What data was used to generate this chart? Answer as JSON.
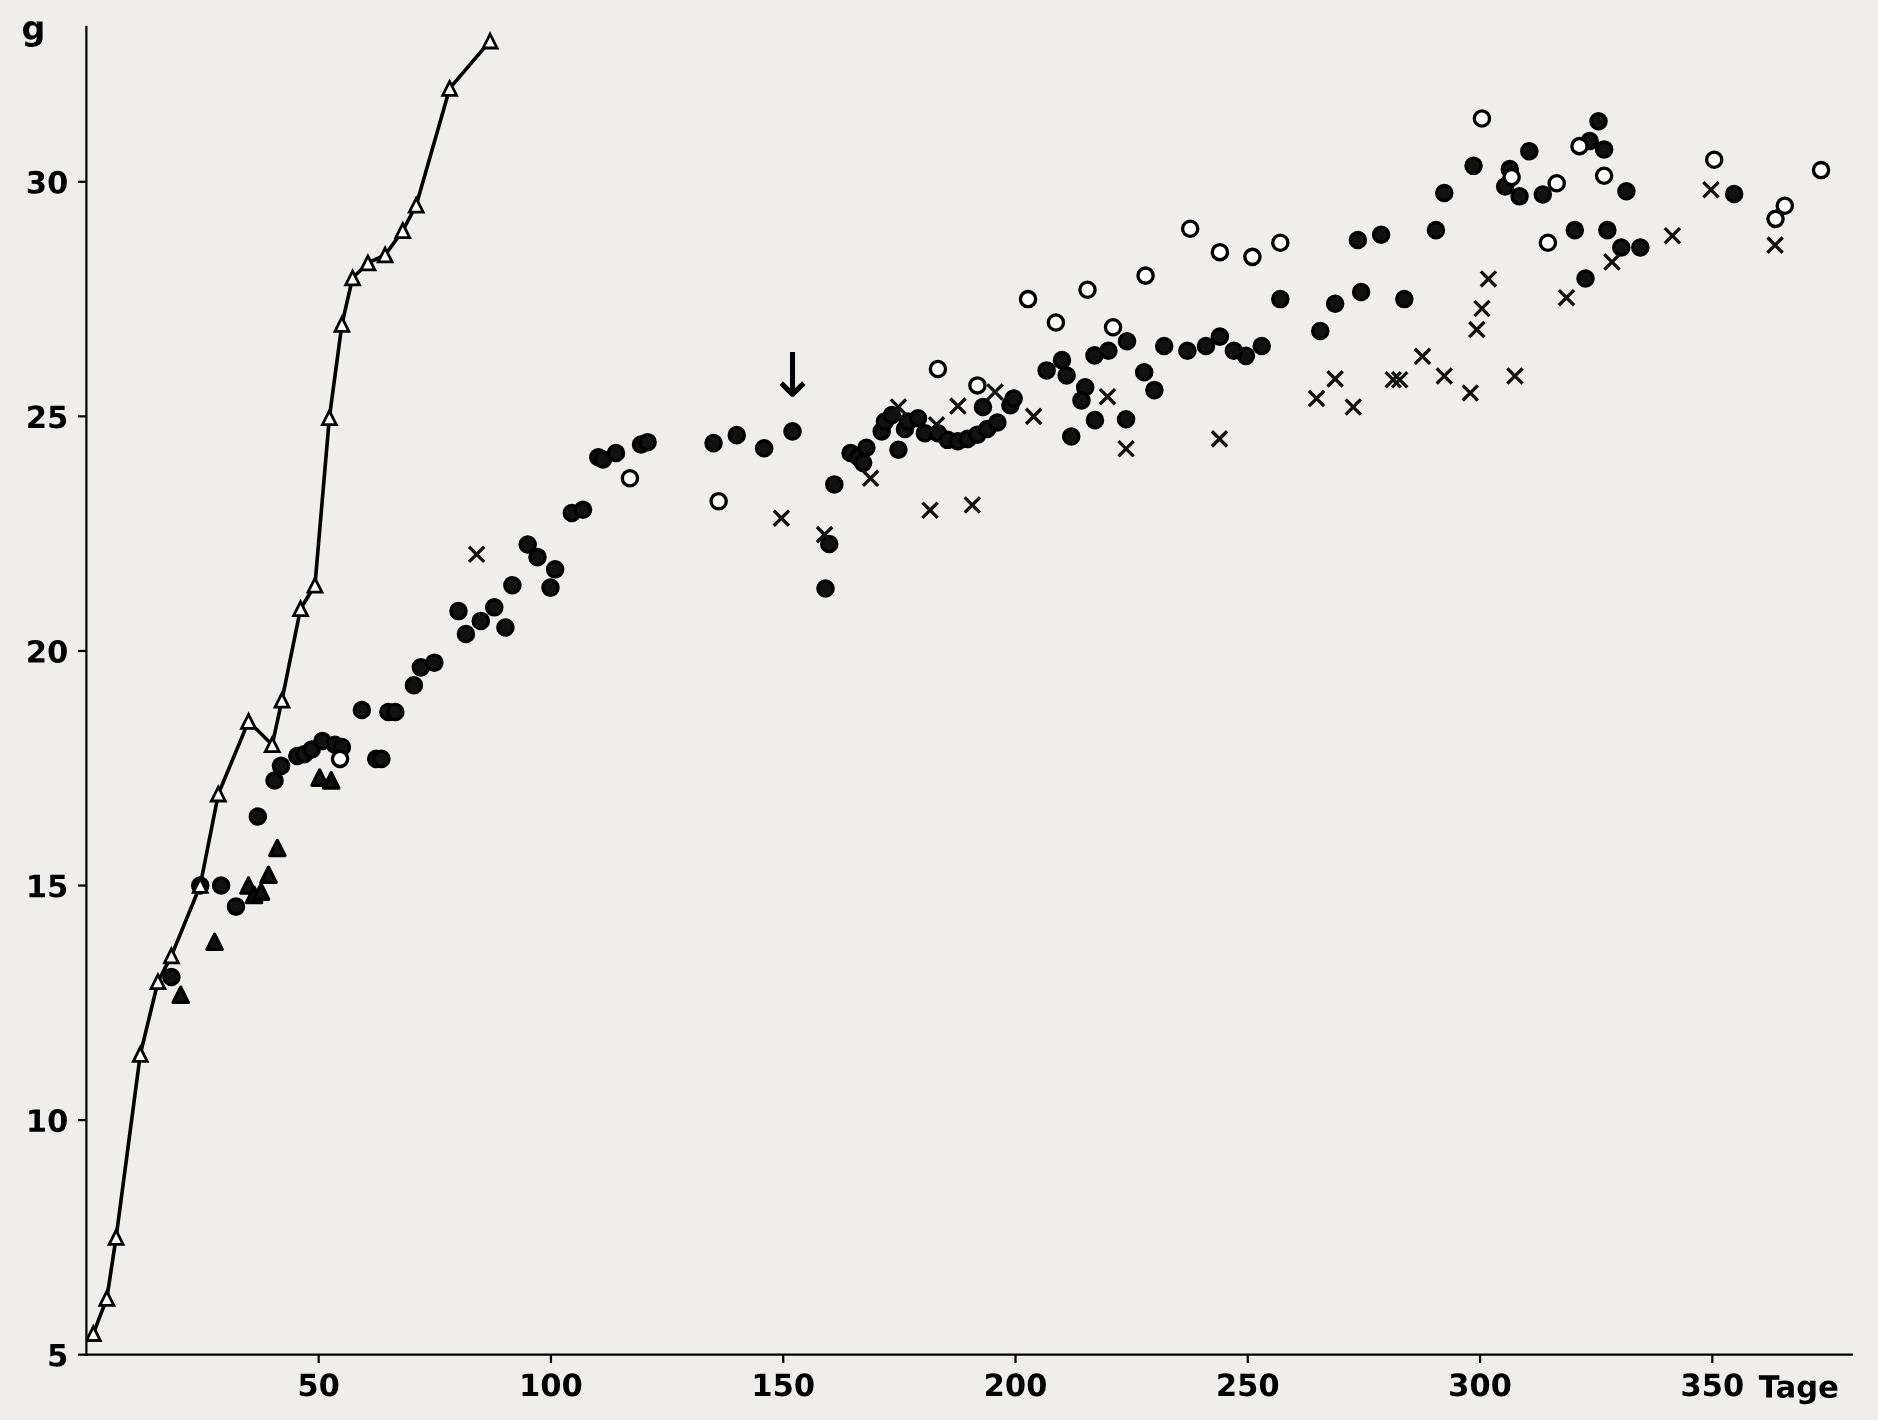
{
  "chart_data": {
    "type": "scatter",
    "xlabel": "Tage",
    "ylabel": "g",
    "xlim": [
      0,
      380
    ],
    "ylim": [
      5,
      33.3
    ],
    "xticks": [
      50,
      100,
      150,
      200,
      250,
      300,
      350
    ],
    "yticks": [
      5,
      10,
      15,
      20,
      25,
      30
    ],
    "grid": false,
    "legend": false,
    "annotations": [
      {
        "text": "↓",
        "x": 152,
        "y": 24.68
      }
    ],
    "series": [
      {
        "type": "line",
        "marker": "triangle",
        "color": "#ffffff",
        "x": [
          1.5,
          4.4,
          6.4,
          11.6,
          15.4,
          18.3,
          24.5,
          28.4,
          34.9,
          40.0,
          42.1,
          46.1,
          49.2,
          52.3,
          55.0,
          57.3,
          60.6,
          64.3,
          68.1,
          71.0,
          78.2,
          86.9
        ],
        "values": [
          5.45,
          6.2,
          7.5,
          11.4,
          12.95,
          13.5,
          15.0,
          16.95,
          18.5,
          18.0,
          18.95,
          20.9,
          21.4,
          24.97,
          26.96,
          27.95,
          28.27,
          28.44,
          28.96,
          29.5,
          31.99,
          33.0
        ]
      },
      {
        "marker": "circle",
        "color": "#111111",
        "x": [
          18.3,
          24.5,
          29.0,
          32.2,
          36.9,
          40.5,
          41.9,
          45.4,
          46.9,
          48.5,
          50.8,
          53.5,
          55.0,
          59.3,
          62.4,
          63.5,
          65.0,
          66.5,
          70.5,
          72.0,
          74.9,
          80.1,
          81.7,
          84.9,
          87.8,
          90.2,
          91.7,
          95.0,
          97.1,
          100.9,
          99.9,
          104.5,
          106.9,
          110.2,
          111.2,
          114.0,
          119.4,
          120.8,
          135.0,
          140.0,
          145.9,
          152.0,
          159.9,
          159.1,
          161.0,
          164.5,
          166.2,
          167.2,
          167.9,
          171.2,
          171.9,
          173.4,
          176.2,
          176.9,
          179.0,
          180.5,
          174.8,
          183.3,
          185.4,
          187.6,
          189.7,
          191.8,
          193.9,
          196.1,
          193.0,
          198.9,
          199.6,
          206.7,
          211.0,
          215.0,
          214.2,
          217.1,
          212.0,
          223.8,
          227.7,
          229.9,
          249.6,
          210.0,
          217.0,
          220.0,
          224.0,
          232.0,
          237.0,
          241.0,
          244.0,
          247.0,
          253.0,
          257.0,
          265.6,
          268.8,
          274.4,
          283.7,
          273.7,
          278.7,
          290.5,
          292.3,
          298.6,
          305.4,
          306.4,
          308.5,
          310.6,
          313.5,
          320.4,
          327.4,
          323.6,
          325.5,
          326.7,
          331.5,
          330.4,
          334.5,
          322.7,
          354.7
        ],
        "values": [
          13.05,
          15.0,
          15.0,
          14.55,
          16.47,
          17.24,
          17.55,
          17.76,
          17.8,
          17.9,
          18.08,
          18.0,
          17.95,
          18.74,
          17.7,
          17.7,
          18.7,
          18.7,
          19.27,
          19.65,
          19.75,
          20.85,
          20.36,
          20.64,
          20.93,
          20.5,
          21.4,
          22.27,
          22.0,
          21.74,
          21.35,
          22.94,
          23.01,
          24.13,
          24.08,
          24.22,
          24.4,
          24.45,
          24.43,
          24.6,
          24.32,
          24.68,
          22.28,
          21.33,
          23.55,
          24.22,
          24.13,
          24.01,
          24.33,
          24.68,
          24.89,
          25.03,
          24.73,
          24.89,
          24.96,
          24.64,
          24.29,
          24.64,
          24.5,
          24.47,
          24.52,
          24.61,
          24.73,
          24.87,
          25.2,
          25.24,
          25.38,
          25.98,
          25.87,
          25.62,
          25.34,
          24.92,
          24.57,
          24.94,
          25.94,
          25.56,
          26.29,
          26.2,
          26.3,
          26.4,
          26.6,
          26.5,
          26.4,
          26.5,
          26.7,
          26.4,
          26.5,
          27.5,
          26.82,
          27.4,
          27.65,
          27.5,
          28.76,
          28.87,
          28.97,
          29.76,
          30.34,
          29.9,
          30.27,
          29.69,
          30.65,
          29.73,
          28.97,
          28.97,
          30.87,
          31.29,
          30.69,
          29.8,
          28.6,
          28.6,
          27.94,
          29.74
        ]
      },
      {
        "marker": "circle",
        "color": "#ffffff",
        "x": [
          54.6,
          117.0,
          136.1,
          183.3,
          191.8,
          202.7,
          208.7,
          215.5,
          221.0,
          228.0,
          237.6,
          244.0,
          251.0,
          257.0,
          300.4,
          306.8,
          316.5,
          314.6,
          321.4,
          326.7,
          350.4,
          363.6,
          365.6,
          373.4
        ],
        "values": [
          17.7,
          23.68,
          23.19,
          26.01,
          25.66,
          27.5,
          27.0,
          27.7,
          26.9,
          28.0,
          29.0,
          28.5,
          28.4,
          28.7,
          31.35,
          30.1,
          29.97,
          28.7,
          30.76,
          30.13,
          30.47,
          29.21,
          29.49,
          30.25
        ]
      },
      {
        "marker": "cross",
        "color": "#111111",
        "x": [
          84.0,
          149.6,
          158.9,
          168.8,
          174.8,
          181.6,
          183.0,
          187.6,
          195.6,
          203.9,
          190.7,
          219.8,
          223.8,
          243.9,
          264.8,
          268.8,
          272.7,
          281.3,
          282.7,
          287.6,
          292.3,
          297.9,
          299.3,
          300.4,
          301.8,
          307.5,
          318.6,
          328.4,
          341.4,
          349.7,
          363.5
        ],
        "values": [
          22.06,
          22.83,
          22.48,
          23.68,
          25.2,
          23.0,
          24.82,
          25.22,
          25.52,
          25.0,
          23.11,
          25.42,
          24.31,
          24.52,
          25.38,
          25.8,
          25.2,
          25.78,
          25.78,
          26.28,
          25.86,
          25.5,
          26.85,
          27.3,
          27.93,
          25.86,
          27.53,
          28.29,
          28.85,
          29.83,
          28.65
        ]
      },
      {
        "marker": "triangle",
        "color": "#111111",
        "x": [
          20.3,
          27.6,
          34.9,
          36.1,
          37.6,
          39.2,
          41.1,
          50.2,
          52.7
        ],
        "values": [
          12.67,
          13.8,
          15.0,
          14.8,
          14.87,
          15.23,
          15.8,
          17.3,
          17.24
        ]
      }
    ]
  }
}
